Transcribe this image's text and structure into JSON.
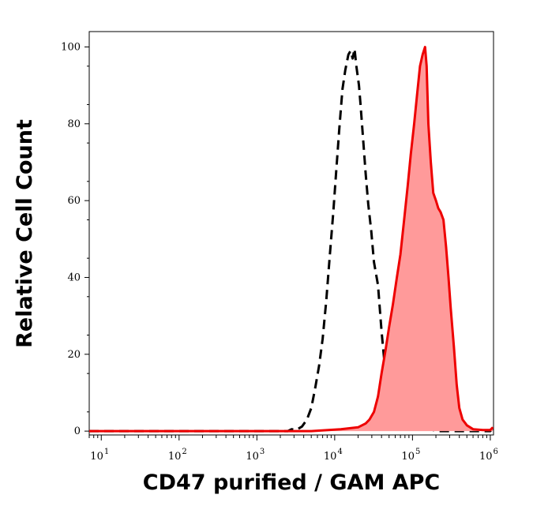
{
  "chart_data": {
    "type": "area",
    "title": "",
    "xlabel": "CD47 purified / GAM APC",
    "ylabel": "Relative Cell Count",
    "x_scale": "log",
    "xlim": [
      7,
      1100000
    ],
    "ylim": [
      -1,
      104
    ],
    "y_ticks": [
      0,
      20,
      40,
      60,
      80,
      100
    ],
    "y_tick_labels": [
      "0",
      "20",
      "40",
      "60",
      "80",
      "100"
    ],
    "x_ticks": [
      {
        "base": "10",
        "exp": "1",
        "value": 10
      },
      {
        "base": "10",
        "exp": "2",
        "value": 100
      },
      {
        "base": "10",
        "exp": "3",
        "value": 1000
      },
      {
        "base": "10",
        "exp": "4",
        "value": 10000
      },
      {
        "base": "10",
        "exp": "5",
        "value": 100000
      },
      {
        "base": "10",
        "exp": "6",
        "value": 1000000
      }
    ],
    "grid": false,
    "legend": "none",
    "series": [
      {
        "style": "dashed",
        "color": "#000000",
        "fill": "none",
        "points": [
          [
            7,
            0
          ],
          [
            100,
            0
          ],
          [
            1000,
            0
          ],
          [
            2500,
            0
          ],
          [
            2800,
            0.5
          ],
          [
            3200,
            0.3
          ],
          [
            3800,
            1.2
          ],
          [
            4400,
            3
          ],
          [
            5000,
            6
          ],
          [
            5600,
            11
          ],
          [
            6300,
            17
          ],
          [
            7000,
            24
          ],
          [
            7800,
            34
          ],
          [
            8600,
            45
          ],
          [
            9600,
            57
          ],
          [
            10500,
            68
          ],
          [
            11500,
            79
          ],
          [
            12600,
            89
          ],
          [
            13700,
            94
          ],
          [
            15000,
            98
          ],
          [
            16000,
            99
          ],
          [
            17000,
            97
          ],
          [
            18000,
            99.5
          ],
          [
            19000,
            95
          ],
          [
            20500,
            90
          ],
          [
            21500,
            85
          ],
          [
            23000,
            77
          ],
          [
            25000,
            67
          ],
          [
            27000,
            59
          ],
          [
            29500,
            52
          ],
          [
            32000,
            44
          ],
          [
            36000,
            38
          ],
          [
            40000,
            26
          ],
          [
            44000,
            17
          ],
          [
            48000,
            10
          ],
          [
            53000,
            5
          ],
          [
            58000,
            3
          ],
          [
            70000,
            2
          ],
          [
            90000,
            1
          ],
          [
            130000,
            1.5
          ],
          [
            200000,
            0
          ],
          [
            500000,
            0
          ],
          [
            1000000,
            0
          ],
          [
            1080000,
            0.8
          ]
        ]
      },
      {
        "style": "solid",
        "color": "#ee0000",
        "fill": "#ff9a9a",
        "points": [
          [
            7,
            0
          ],
          [
            1000,
            0
          ],
          [
            5000,
            0
          ],
          [
            12000,
            0.5
          ],
          [
            20000,
            1
          ],
          [
            25000,
            2
          ],
          [
            28000,
            3
          ],
          [
            32000,
            5
          ],
          [
            36000,
            9
          ],
          [
            40000,
            15
          ],
          [
            45000,
            21
          ],
          [
            50000,
            27
          ],
          [
            56000,
            33
          ],
          [
            63000,
            40
          ],
          [
            70000,
            46
          ],
          [
            78000,
            55
          ],
          [
            87000,
            64
          ],
          [
            95000,
            72
          ],
          [
            105000,
            80
          ],
          [
            115000,
            88
          ],
          [
            125000,
            95
          ],
          [
            135000,
            98
          ],
          [
            145000,
            100
          ],
          [
            152000,
            95
          ],
          [
            160000,
            80
          ],
          [
            172000,
            70
          ],
          [
            185000,
            62
          ],
          [
            200000,
            60
          ],
          [
            215000,
            58
          ],
          [
            230000,
            57
          ],
          [
            250000,
            55
          ],
          [
            270000,
            48
          ],
          [
            290000,
            40
          ],
          [
            310000,
            32
          ],
          [
            340000,
            22
          ],
          [
            370000,
            12
          ],
          [
            400000,
            6
          ],
          [
            440000,
            3
          ],
          [
            500000,
            1.5
          ],
          [
            600000,
            0.5
          ],
          [
            800000,
            0.3
          ],
          [
            1000000,
            0.3
          ],
          [
            1080000,
            1
          ]
        ]
      }
    ]
  }
}
